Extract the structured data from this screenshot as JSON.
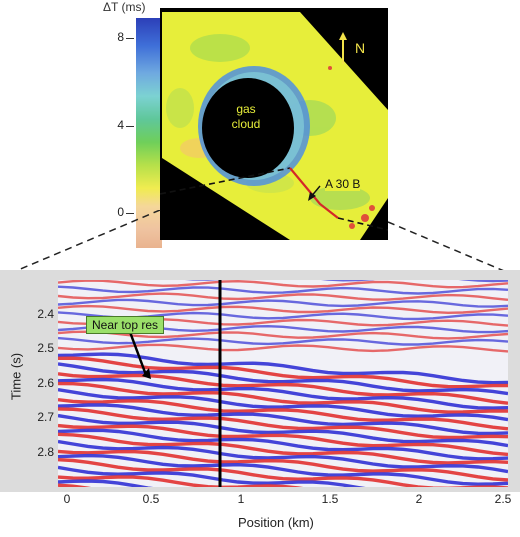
{
  "colorbar": {
    "title": "ΔT (ms)",
    "ticks": [
      "8",
      "4",
      "0"
    ]
  },
  "map": {
    "gas_label_line1": "gas",
    "gas_label_line2": "cloud",
    "north_label": "N",
    "section_label": "A 30 B"
  },
  "seismic": {
    "annotation": "Near  top  res",
    "ylabel": "Time (s)",
    "xlabel": "Position (km)",
    "yticks": [
      "2.4",
      "2.5",
      "2.6",
      "2.7",
      "2.8"
    ],
    "xticks": [
      "0",
      "0.5",
      "1",
      "1.5",
      "2",
      "2.5"
    ]
  }
}
